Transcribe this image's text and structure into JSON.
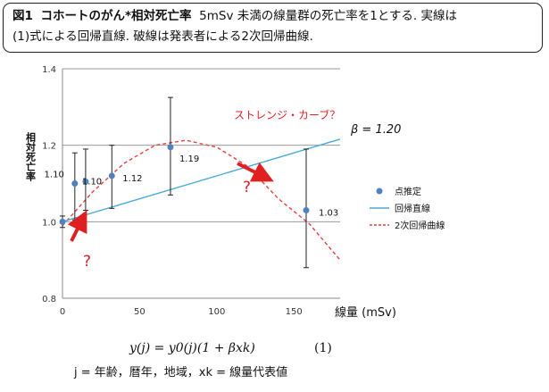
{
  "caption": {
    "fig_label": "図1",
    "title_bold": "コホートのがん*相対死亡率",
    "text_line1": "5mSv 未満の線量群の死亡率を1とする. 実線は",
    "text_line2": "(1)式による回帰直線. 破線は発表者による2次回帰曲線."
  },
  "formula": {
    "equation": "y(j) = y0(j)(1 + βxk)",
    "number": "(1)",
    "definition": "j = 年齢，暦年，地域，xk = 線量代表値"
  },
  "chart_data": {
    "type": "scatter",
    "ylabel": "相対死亡率",
    "xlabel": "線量 (mSv)",
    "xlim": [
      0,
      180
    ],
    "ylim": [
      0.8,
      1.4
    ],
    "x_ticks": [
      0,
      50,
      100,
      150
    ],
    "y_ticks": [
      "0.8",
      "1.0",
      "1.2",
      "1.4"
    ],
    "grid": "horizontal",
    "legend_position": "right",
    "legend": [
      "点推定",
      "回帰直線",
      "2次回帰曲線"
    ],
    "colors": {
      "points": "#4f81bd",
      "regression_line": "#4aaad8",
      "quadratic_curve": "#e84040",
      "annotation": "#e02020"
    },
    "points": [
      {
        "x": 0,
        "y": 1.0,
        "lower": 0.985,
        "upper": 1.015,
        "label": ""
      },
      {
        "x": 8,
        "y": 1.1,
        "lower": 1.005,
        "upper": 1.18,
        "label": "1.10"
      },
      {
        "x": 15,
        "y": 1.105,
        "lower": 1.03,
        "upper": 1.19,
        "label": "1.10"
      },
      {
        "x": 32,
        "y": 1.12,
        "lower": 1.035,
        "upper": 1.2,
        "label": "1.12"
      },
      {
        "x": 70,
        "y": 1.195,
        "lower": 1.07,
        "upper": 1.325,
        "label": "1.19"
      },
      {
        "x": 158,
        "y": 1.03,
        "lower": 0.88,
        "upper": 1.19,
        "label": "1.03"
      }
    ],
    "regression_line": {
      "beta": 1.2,
      "x": [
        0,
        180
      ],
      "y": [
        1.0,
        1.216
      ],
      "label": "β = 1.20"
    },
    "quadratic_curve": {
      "x": [
        0,
        20,
        40,
        60,
        80,
        100,
        120,
        140,
        160,
        180
      ],
      "y": [
        0.99,
        1.08,
        1.153,
        1.2,
        1.213,
        1.195,
        1.145,
        1.06,
        0.995,
        0.9
      ]
    },
    "annotations": {
      "strange_curve": "ストレンジ・カーブ？",
      "question": "?"
    }
  }
}
